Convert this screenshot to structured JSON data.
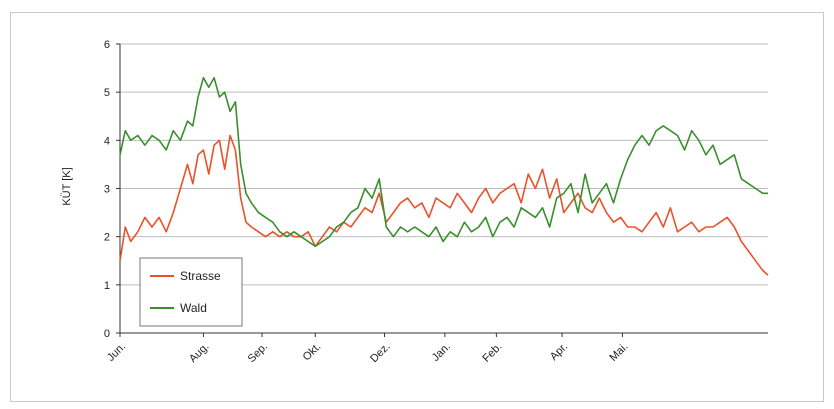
{
  "chart_data": {
    "type": "line",
    "title": "",
    "xlabel": "",
    "ylabel": "KÜT [K]",
    "ylim": [
      0,
      6
    ],
    "yticks": [
      0,
      1,
      2,
      3,
      4,
      5,
      6
    ],
    "x_range": [
      0,
      365
    ],
    "grid": "horizontal",
    "legend_position": "lower-left",
    "categories": [
      "Jun.",
      "Aug.",
      "Sep.",
      "Okt.",
      "Dez.",
      "Jan.",
      "Feb.",
      "Apr.",
      "Mai."
    ],
    "category_x": [
      0,
      47,
      80,
      110,
      149,
      183,
      212,
      249,
      283
    ],
    "series": [
      {
        "name": "Strasse",
        "color": "#e8532a",
        "x": [
          0,
          3,
          6,
          10,
          14,
          18,
          22,
          26,
          30,
          34,
          38,
          41,
          44,
          47,
          50,
          53,
          56,
          59,
          62,
          65,
          68,
          71,
          74,
          78,
          82,
          86,
          90,
          94,
          98,
          102,
          106,
          110,
          114,
          118,
          122,
          126,
          130,
          134,
          138,
          142,
          146,
          150,
          154,
          158,
          162,
          166,
          170,
          174,
          178,
          182,
          186,
          190,
          194,
          198,
          202,
          206,
          210,
          214,
          218,
          222,
          226,
          230,
          234,
          238,
          242,
          246,
          250,
          254,
          258,
          262,
          266,
          270,
          274,
          278,
          282,
          286,
          290,
          294,
          298,
          302,
          306,
          310,
          314,
          318,
          322,
          326,
          330,
          334,
          338,
          342,
          346,
          350,
          354,
          358,
          362,
          365
        ],
        "y": [
          1.5,
          2.2,
          1.9,
          2.1,
          2.4,
          2.2,
          2.4,
          2.1,
          2.5,
          3.0,
          3.5,
          3.1,
          3.7,
          3.8,
          3.3,
          3.9,
          4.0,
          3.4,
          4.1,
          3.8,
          2.8,
          2.3,
          2.2,
          2.1,
          2.0,
          2.1,
          2.0,
          2.1,
          2.0,
          2.0,
          2.1,
          1.8,
          2.0,
          2.2,
          2.1,
          2.3,
          2.2,
          2.4,
          2.6,
          2.5,
          2.9,
          2.3,
          2.5,
          2.7,
          2.8,
          2.6,
          2.7,
          2.4,
          2.8,
          2.7,
          2.6,
          2.9,
          2.7,
          2.5,
          2.8,
          3.0,
          2.7,
          2.9,
          3.0,
          3.1,
          2.7,
          3.3,
          3.0,
          3.4,
          2.8,
          3.2,
          2.5,
          2.7,
          2.9,
          2.6,
          2.5,
          2.8,
          2.5,
          2.3,
          2.4,
          2.2,
          2.2,
          2.1,
          2.3,
          2.5,
          2.2,
          2.6,
          2.1,
          2.2,
          2.3,
          2.1,
          2.2,
          2.2,
          2.3,
          2.4,
          2.2,
          1.9,
          1.7,
          1.5,
          1.3,
          1.2
        ]
      },
      {
        "name": "Wald",
        "color": "#3a8f2d",
        "x": [
          0,
          3,
          6,
          10,
          14,
          18,
          22,
          26,
          30,
          34,
          38,
          41,
          44,
          47,
          50,
          53,
          56,
          59,
          62,
          65,
          68,
          71,
          74,
          78,
          82,
          86,
          90,
          94,
          98,
          102,
          106,
          110,
          114,
          118,
          122,
          126,
          130,
          134,
          138,
          142,
          146,
          150,
          154,
          158,
          162,
          166,
          170,
          174,
          178,
          182,
          186,
          190,
          194,
          198,
          202,
          206,
          210,
          214,
          218,
          222,
          226,
          230,
          234,
          238,
          242,
          246,
          250,
          254,
          258,
          262,
          266,
          270,
          274,
          278,
          282,
          286,
          290,
          294,
          298,
          302,
          306,
          310,
          314,
          318,
          322,
          326,
          330,
          334,
          338,
          342,
          346,
          350,
          354,
          358,
          362,
          365
        ],
        "y": [
          3.7,
          4.2,
          4.0,
          4.1,
          3.9,
          4.1,
          4.0,
          3.8,
          4.2,
          4.0,
          4.4,
          4.3,
          4.9,
          5.3,
          5.1,
          5.3,
          4.9,
          5.0,
          4.6,
          4.8,
          3.5,
          2.9,
          2.7,
          2.5,
          2.4,
          2.3,
          2.1,
          2.0,
          2.1,
          2.0,
          1.9,
          1.8,
          1.9,
          2.0,
          2.2,
          2.3,
          2.5,
          2.6,
          3.0,
          2.8,
          3.2,
          2.2,
          2.0,
          2.2,
          2.1,
          2.2,
          2.1,
          2.0,
          2.2,
          1.9,
          2.1,
          2.0,
          2.3,
          2.1,
          2.2,
          2.4,
          2.0,
          2.3,
          2.4,
          2.2,
          2.6,
          2.5,
          2.4,
          2.6,
          2.2,
          2.8,
          2.9,
          3.1,
          2.5,
          3.3,
          2.7,
          2.9,
          3.1,
          2.7,
          3.2,
          3.6,
          3.9,
          4.1,
          3.9,
          4.2,
          4.3,
          4.2,
          4.1,
          3.8,
          4.2,
          4.0,
          3.7,
          3.9,
          3.5,
          3.6,
          3.7,
          3.2,
          3.1,
          3.0,
          2.9,
          2.9
        ]
      }
    ]
  }
}
